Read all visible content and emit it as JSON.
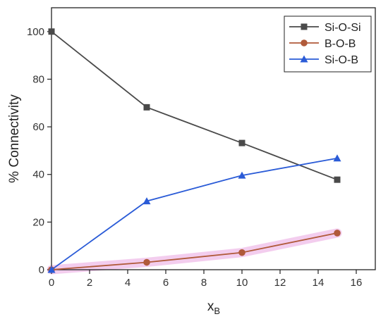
{
  "chart_data": {
    "type": "line",
    "title": "",
    "xlabel": "x",
    "xlabel_subscript": "B",
    "ylabel": "% Connectivity",
    "xlim": [
      0,
      17
    ],
    "ylim": [
      0,
      110
    ],
    "xticks": [
      0,
      2,
      4,
      6,
      8,
      10,
      12,
      14,
      16
    ],
    "yticks": [
      0,
      20,
      40,
      60,
      80,
      100
    ],
    "grid": false,
    "legend_position": "top-right",
    "x": [
      0,
      5,
      10,
      15
    ],
    "series": [
      {
        "name": "Si-O-Si",
        "values": [
          100,
          68.2,
          53.2,
          37.8
        ],
        "color": "#4a4a4a",
        "marker": "square"
      },
      {
        "name": "B-O-B",
        "values": [
          0,
          3.1,
          7.2,
          15.4
        ],
        "color": "#b05a3a",
        "marker": "circle"
      },
      {
        "name": "Si-O-B",
        "values": [
          0,
          28.8,
          39.6,
          46.8
        ],
        "color": "#2a5bd7",
        "marker": "triangle"
      }
    ]
  }
}
